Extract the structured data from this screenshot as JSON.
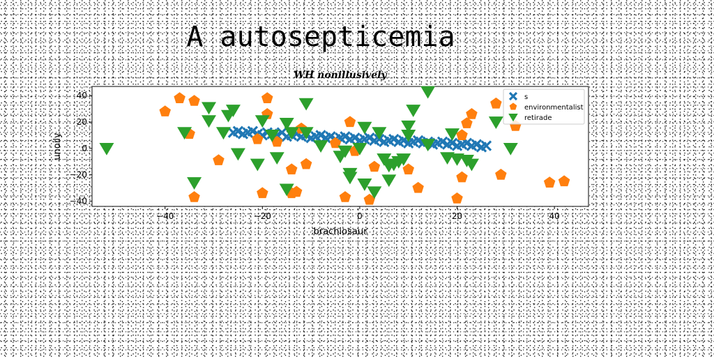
{
  "figure_title": "A autosepticemia",
  "chart_data": {
    "type": "scatter",
    "title": "WH nonillusively",
    "xlabel": "brachiosaur",
    "ylabel": "unoily",
    "xlim": [
      -55,
      47
    ],
    "ylim": [
      -44,
      47
    ],
    "xticks": [
      -40,
      -20,
      0,
      20,
      40
    ],
    "yticks": [
      -40,
      -20,
      0,
      20,
      40
    ],
    "legend_position": "top-right",
    "series": [
      {
        "name": "s",
        "marker": "x",
        "color": "#1f77b4",
        "x": [
          -26,
          -25,
          -24,
          -23,
          -22,
          -21,
          -20,
          -19,
          -18,
          -17,
          -16,
          -15,
          -14,
          -13,
          -12,
          -11,
          -10,
          -9,
          -8,
          -7,
          -6,
          -5,
          -4,
          -3,
          -2,
          -1,
          0,
          1,
          2,
          3,
          4,
          5,
          6,
          7,
          8,
          9,
          10,
          11,
          12,
          13,
          14,
          15,
          16,
          17,
          18,
          19,
          20,
          21,
          22,
          23,
          24,
          25,
          26
        ],
        "y": [
          12,
          13,
          11,
          12,
          13,
          11,
          10,
          12,
          11,
          10,
          12,
          9,
          10,
          11,
          9,
          10,
          8,
          9,
          10,
          8,
          9,
          7,
          8,
          9,
          7,
          8,
          6,
          7,
          8,
          6,
          7,
          5,
          6,
          7,
          5,
          6,
          4,
          5,
          6,
          4,
          5,
          3,
          4,
          5,
          3,
          4,
          2,
          3,
          4,
          2,
          3,
          1,
          2
        ]
      },
      {
        "name": "environmentalist",
        "marker": "pentagon",
        "color": "#ff7f0e",
        "x": [
          -40,
          -37,
          -34,
          -35,
          -34,
          -29,
          -19,
          -21,
          -20,
          -19,
          -17,
          -14,
          -14,
          -12,
          -13,
          -11,
          -5,
          -3,
          -1,
          -2,
          2,
          3,
          10,
          12,
          20,
          21,
          21,
          22,
          23,
          28,
          29,
          32,
          39,
          42
        ],
        "y": [
          28,
          38,
          36,
          11,
          -37,
          -9,
          38,
          7,
          -34,
          26,
          5,
          -16,
          -34,
          15,
          -33,
          -12,
          4,
          -37,
          -2,
          20,
          -39,
          -14,
          -16,
          -30,
          -38,
          10,
          -22,
          19,
          26,
          34,
          -20,
          17,
          -26,
          -25
        ]
      },
      {
        "name": "retirade",
        "marker": "triangle-down",
        "color": "#2ca02c",
        "x": [
          -52,
          -36,
          -34,
          -31,
          -31,
          -28,
          -27,
          -26,
          -25,
          -21,
          -20,
          -18,
          -17,
          -15,
          -15,
          -14,
          -11,
          -11,
          -8,
          -4,
          -3,
          -2,
          -2,
          0,
          1,
          1,
          3,
          4,
          5,
          6,
          6,
          7,
          8,
          9,
          10,
          10,
          11,
          14,
          14,
          18,
          19,
          20,
          22,
          23,
          28,
          31
        ],
        "y": [
          0,
          12,
          -26,
          31,
          21,
          12,
          25,
          29,
          -4,
          -12,
          21,
          10,
          -7,
          19,
          -31,
          12,
          34,
          12,
          2,
          -6,
          -2,
          -22,
          -19,
          0,
          16,
          -27,
          -33,
          12,
          -8,
          -24,
          -13,
          -12,
          -10,
          -8,
          17,
          10,
          29,
          43,
          3,
          -7,
          11,
          -8,
          -9,
          -12,
          20,
          0
        ]
      }
    ]
  }
}
